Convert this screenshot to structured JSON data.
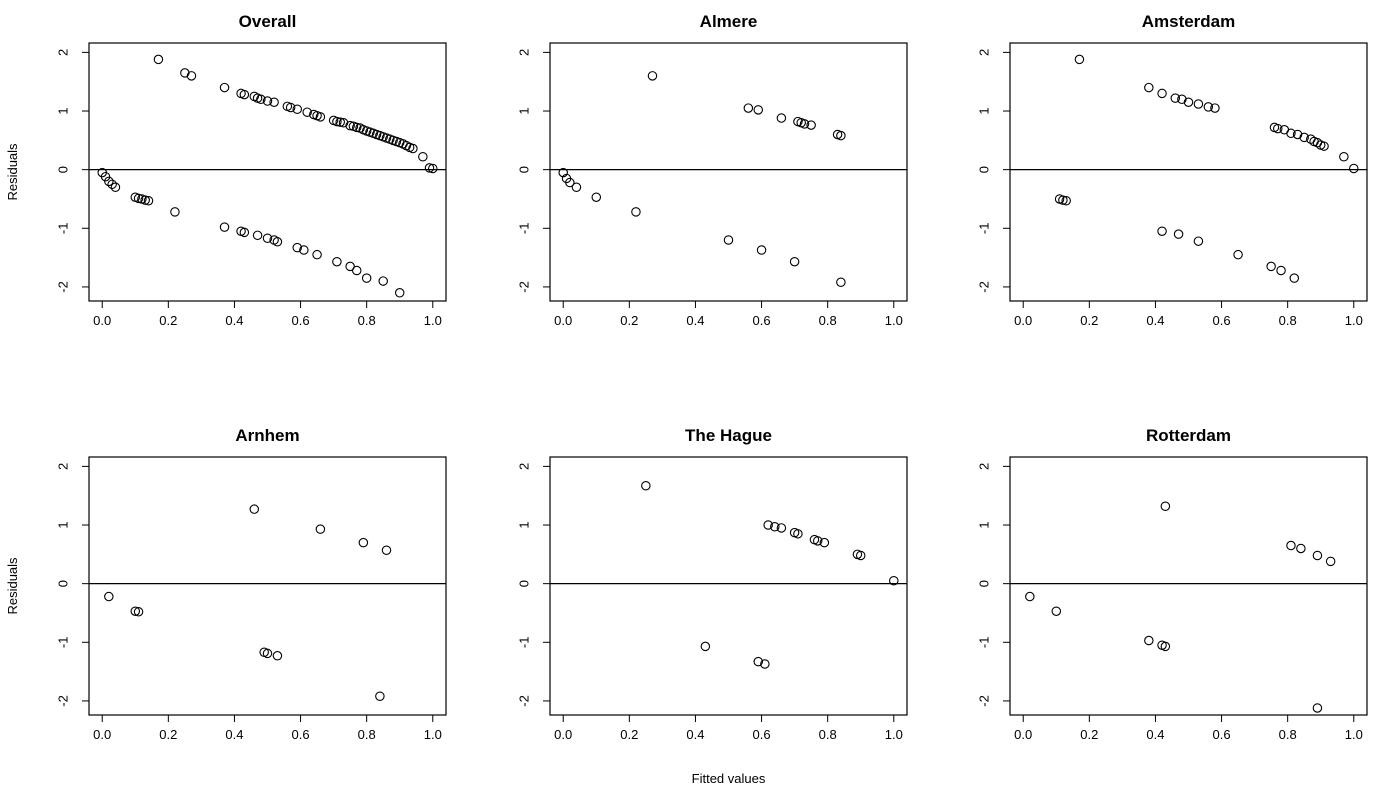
{
  "figure": {
    "xlabel": "Fitted values",
    "ylabel": "Residuals"
  },
  "chart_data": [
    {
      "type": "scatter",
      "title": "Overall",
      "xlabel": "",
      "ylabel": "Residuals",
      "xlim": [
        0,
        1
      ],
      "ylim": [
        -2,
        2
      ],
      "xticks": [
        "0.0",
        "0.2",
        "0.4",
        "0.6",
        "0.8",
        "1.0"
      ],
      "yticks": [
        "-2",
        "-1",
        "0",
        "1",
        "2"
      ],
      "hline": 0,
      "points": [
        [
          0.0,
          -0.05
        ],
        [
          0.01,
          -0.12
        ],
        [
          0.02,
          -0.2
        ],
        [
          0.03,
          -0.25
        ],
        [
          0.04,
          -0.3
        ],
        [
          0.1,
          -0.47
        ],
        [
          0.11,
          -0.49
        ],
        [
          0.12,
          -0.5
        ],
        [
          0.13,
          -0.52
        ],
        [
          0.14,
          -0.53
        ],
        [
          0.17,
          1.88
        ],
        [
          0.22,
          -0.72
        ],
        [
          0.25,
          1.65
        ],
        [
          0.27,
          1.6
        ],
        [
          0.37,
          1.4
        ],
        [
          0.37,
          -0.98
        ],
        [
          0.42,
          1.3
        ],
        [
          0.43,
          1.28
        ],
        [
          0.42,
          -1.05
        ],
        [
          0.43,
          -1.07
        ],
        [
          0.46,
          1.25
        ],
        [
          0.47,
          1.22
        ],
        [
          0.48,
          1.2
        ],
        [
          0.47,
          -1.12
        ],
        [
          0.5,
          1.17
        ],
        [
          0.5,
          -1.17
        ],
        [
          0.52,
          1.15
        ],
        [
          0.52,
          -1.2
        ],
        [
          0.53,
          -1.23
        ],
        [
          0.56,
          1.08
        ],
        [
          0.57,
          1.06
        ],
        [
          0.59,
          1.03
        ],
        [
          0.59,
          -1.33
        ],
        [
          0.61,
          -1.37
        ],
        [
          0.62,
          0.98
        ],
        [
          0.64,
          0.94
        ],
        [
          0.65,
          0.92
        ],
        [
          0.66,
          0.9
        ],
        [
          0.65,
          -1.45
        ],
        [
          0.7,
          0.84
        ],
        [
          0.71,
          0.82
        ],
        [
          0.72,
          0.81
        ],
        [
          0.73,
          0.8
        ],
        [
          0.71,
          -1.57
        ],
        [
          0.75,
          0.75
        ],
        [
          0.76,
          0.74
        ],
        [
          0.77,
          0.72
        ],
        [
          0.78,
          0.71
        ],
        [
          0.75,
          -1.65
        ],
        [
          0.77,
          -1.72
        ],
        [
          0.79,
          0.68
        ],
        [
          0.8,
          0.66
        ],
        [
          0.81,
          0.64
        ],
        [
          0.82,
          0.62
        ],
        [
          0.8,
          -1.85
        ],
        [
          0.83,
          0.6
        ],
        [
          0.84,
          0.58
        ],
        [
          0.85,
          0.56
        ],
        [
          0.85,
          -1.9
        ],
        [
          0.86,
          0.54
        ],
        [
          0.87,
          0.52
        ],
        [
          0.88,
          0.5
        ],
        [
          0.89,
          0.48
        ],
        [
          0.9,
          0.46
        ],
        [
          0.9,
          -2.1
        ],
        [
          0.91,
          0.44
        ],
        [
          0.92,
          0.41
        ],
        [
          0.93,
          0.38
        ],
        [
          0.94,
          0.36
        ],
        [
          0.97,
          0.22
        ],
        [
          0.99,
          0.03
        ],
        [
          1.0,
          0.02
        ]
      ]
    },
    {
      "type": "scatter",
      "title": "Almere",
      "xlabel": "",
      "ylabel": "",
      "xlim": [
        0,
        1
      ],
      "ylim": [
        -2,
        2
      ],
      "xticks": [
        "0.0",
        "0.2",
        "0.4",
        "0.6",
        "0.8",
        "1.0"
      ],
      "yticks": [
        "-2",
        "-1",
        "0",
        "1",
        "2"
      ],
      "hline": 0,
      "points": [
        [
          0.0,
          -0.05
        ],
        [
          0.01,
          -0.15
        ],
        [
          0.02,
          -0.22
        ],
        [
          0.04,
          -0.3
        ],
        [
          0.1,
          -0.47
        ],
        [
          0.22,
          -0.72
        ],
        [
          0.27,
          1.6
        ],
        [
          0.5,
          -1.2
        ],
        [
          0.56,
          1.05
        ],
        [
          0.59,
          1.02
        ],
        [
          0.6,
          -1.37
        ],
        [
          0.66,
          0.88
        ],
        [
          0.7,
          -1.57
        ],
        [
          0.71,
          0.82
        ],
        [
          0.72,
          0.8
        ],
        [
          0.73,
          0.78
        ],
        [
          0.75,
          0.76
        ],
        [
          0.83,
          0.6
        ],
        [
          0.84,
          0.58
        ],
        [
          0.84,
          -1.92
        ]
      ]
    },
    {
      "type": "scatter",
      "title": "Amsterdam",
      "xlabel": "",
      "ylabel": "",
      "xlim": [
        0,
        1
      ],
      "ylim": [
        -2,
        2
      ],
      "xticks": [
        "0.0",
        "0.2",
        "0.4",
        "0.6",
        "0.8",
        "1.0"
      ],
      "yticks": [
        "-2",
        "-1",
        "0",
        "1",
        "2"
      ],
      "hline": 0,
      "points": [
        [
          0.11,
          -0.5
        ],
        [
          0.12,
          -0.52
        ],
        [
          0.13,
          -0.53
        ],
        [
          0.17,
          1.88
        ],
        [
          0.38,
          1.4
        ],
        [
          0.42,
          1.3
        ],
        [
          0.42,
          -1.05
        ],
        [
          0.46,
          1.22
        ],
        [
          0.47,
          -1.1
        ],
        [
          0.48,
          1.2
        ],
        [
          0.5,
          1.15
        ],
        [
          0.53,
          1.12
        ],
        [
          0.53,
          -1.22
        ],
        [
          0.56,
          1.07
        ],
        [
          0.58,
          1.05
        ],
        [
          0.65,
          -1.45
        ],
        [
          0.75,
          -1.65
        ],
        [
          0.76,
          0.72
        ],
        [
          0.77,
          0.7
        ],
        [
          0.78,
          -1.72
        ],
        [
          0.79,
          0.68
        ],
        [
          0.81,
          0.62
        ],
        [
          0.82,
          -1.85
        ],
        [
          0.83,
          0.6
        ],
        [
          0.85,
          0.55
        ],
        [
          0.87,
          0.52
        ],
        [
          0.88,
          0.48
        ],
        [
          0.89,
          0.46
        ],
        [
          0.9,
          0.42
        ],
        [
          0.91,
          0.4
        ],
        [
          0.97,
          0.22
        ],
        [
          1.0,
          0.02
        ]
      ]
    },
    {
      "type": "scatter",
      "title": "Arnhem",
      "xlabel": "",
      "ylabel": "Residuals",
      "xlim": [
        0,
        1
      ],
      "ylim": [
        -2,
        2
      ],
      "xticks": [
        "0.0",
        "0.2",
        "0.4",
        "0.6",
        "0.8",
        "1.0"
      ],
      "yticks": [
        "-2",
        "-1",
        "0",
        "1",
        "2"
      ],
      "hline": 0,
      "points": [
        [
          0.02,
          -0.22
        ],
        [
          0.1,
          -0.47
        ],
        [
          0.11,
          -0.48
        ],
        [
          0.46,
          1.27
        ],
        [
          0.49,
          -1.17
        ],
        [
          0.5,
          -1.19
        ],
        [
          0.53,
          -1.23
        ],
        [
          0.66,
          0.93
        ],
        [
          0.79,
          0.7
        ],
        [
          0.84,
          -1.92
        ],
        [
          0.86,
          0.57
        ]
      ]
    },
    {
      "type": "scatter",
      "title": "The Hague",
      "xlabel": "Fitted values",
      "ylabel": "",
      "xlim": [
        0,
        1
      ],
      "ylim": [
        -2,
        2
      ],
      "xticks": [
        "0.0",
        "0.2",
        "0.4",
        "0.6",
        "0.8",
        "1.0"
      ],
      "yticks": [
        "-2",
        "-1",
        "0",
        "1",
        "2"
      ],
      "hline": 0,
      "points": [
        [
          0.25,
          1.67
        ],
        [
          0.43,
          -1.07
        ],
        [
          0.59,
          -1.33
        ],
        [
          0.61,
          -1.37
        ],
        [
          0.62,
          1.0
        ],
        [
          0.64,
          0.97
        ],
        [
          0.66,
          0.95
        ],
        [
          0.7,
          0.87
        ],
        [
          0.71,
          0.85
        ],
        [
          0.76,
          0.75
        ],
        [
          0.77,
          0.73
        ],
        [
          0.79,
          0.7
        ],
        [
          0.89,
          0.5
        ],
        [
          0.9,
          0.48
        ],
        [
          1.0,
          0.05
        ]
      ]
    },
    {
      "type": "scatter",
      "title": "Rotterdam",
      "xlabel": "",
      "ylabel": "",
      "xlim": [
        0,
        1
      ],
      "ylim": [
        -2,
        2
      ],
      "xticks": [
        "0.0",
        "0.2",
        "0.4",
        "0.6",
        "0.8",
        "1.0"
      ],
      "yticks": [
        "-2",
        "-1",
        "0",
        "1",
        "2"
      ],
      "hline": 0,
      "points": [
        [
          0.02,
          -0.22
        ],
        [
          0.1,
          -0.47
        ],
        [
          0.38,
          -0.97
        ],
        [
          0.42,
          -1.05
        ],
        [
          0.43,
          1.32
        ],
        [
          0.43,
          -1.07
        ],
        [
          0.81,
          0.65
        ],
        [
          0.84,
          0.6
        ],
        [
          0.89,
          0.48
        ],
        [
          0.89,
          -2.12
        ],
        [
          0.93,
          0.38
        ]
      ]
    }
  ]
}
